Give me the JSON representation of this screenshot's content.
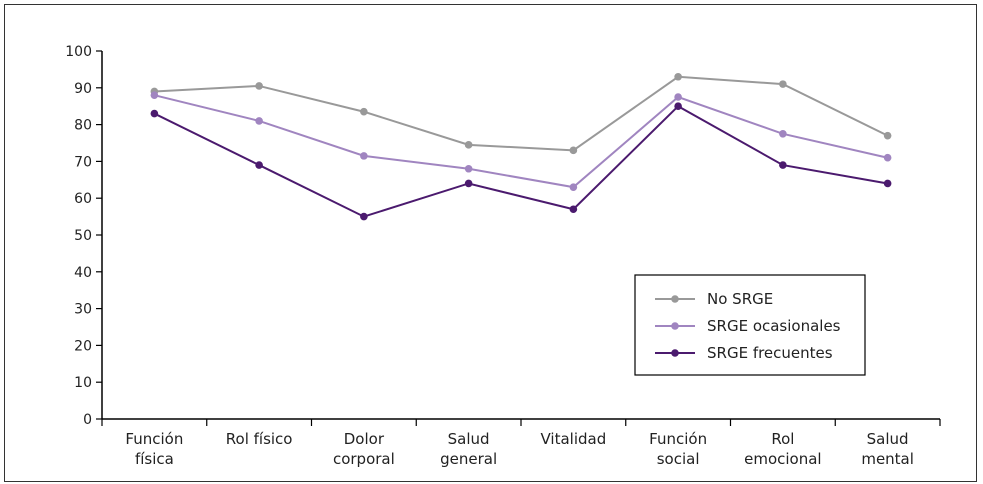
{
  "chart_data": {
    "type": "line",
    "title": "",
    "xlabel": "",
    "ylabel": "",
    "ylim": [
      0,
      100
    ],
    "yticks": [
      0,
      10,
      20,
      30,
      40,
      50,
      60,
      70,
      80,
      90,
      100
    ],
    "grid": false,
    "legend_position": "bottom-right",
    "categories": [
      [
        "Función",
        "física"
      ],
      [
        "Rol físico"
      ],
      [
        "Dolor",
        "corporal"
      ],
      [
        "Salud",
        "general"
      ],
      [
        "Vitalidad"
      ],
      [
        "Función",
        "social"
      ],
      [
        "Rol",
        "emocional"
      ],
      [
        "Salud",
        "mental"
      ]
    ],
    "series": [
      {
        "name": "No SRGE",
        "color": "#999999",
        "values": [
          89,
          90.5,
          83.5,
          74.5,
          73,
          93,
          91,
          77
        ]
      },
      {
        "name": "SRGE ocasionales",
        "color": "#a085c0",
        "values": [
          88,
          81,
          71.5,
          68,
          63,
          87.5,
          77.5,
          71
        ]
      },
      {
        "name": "SRGE frecuentes",
        "color": "#4b1a6e",
        "values": [
          83,
          69,
          55,
          64,
          57,
          85,
          69,
          64
        ]
      }
    ]
  }
}
